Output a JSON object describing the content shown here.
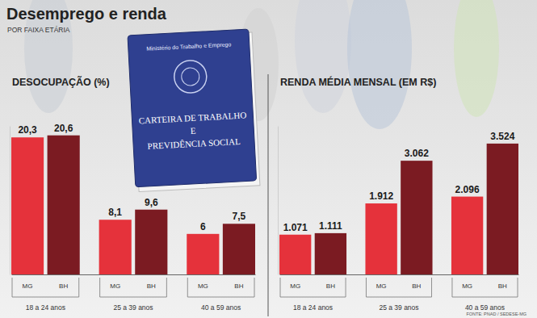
{
  "title": "Desemprego e renda",
  "subtitle": "POR FAIXA ETÁRIA",
  "source": "FONTE: PNAD / SEDESE-MG",
  "illustration": {
    "ministry": "Ministério do Trabalho e Emprego",
    "title_lines": [
      "CARTEIRA DE TRABALHO",
      "E",
      "PREVIDÊNCIA SOCIAL"
    ]
  },
  "chart_data": [
    {
      "type": "bar",
      "title": "DESOCUPAÇÃO (%)",
      "categories": [
        "18 a 24 anos",
        "25 a 39 anos",
        "40 a 59 anos"
      ],
      "series": [
        {
          "name": "MG",
          "color": "#e5323b",
          "values": [
            20.3,
            8.1,
            6
          ],
          "value_labels": [
            "20,3",
            "8,1",
            "6"
          ]
        },
        {
          "name": "BH",
          "color": "#7b1b22",
          "values": [
            20.6,
            9.6,
            7.5
          ],
          "value_labels": [
            "20,6",
            "9,6",
            "7,5"
          ]
        }
      ],
      "ylim": [
        0,
        22
      ],
      "data_labels": true,
      "tick_labels": "x",
      "grid": false
    },
    {
      "type": "bar",
      "title": "RENDA MÉDIA MENSAL (EM R$)",
      "categories": [
        "18 a 24 anos",
        "25 a 39 anos",
        "40 a 59 anos"
      ],
      "series": [
        {
          "name": "MG",
          "color": "#e5323b",
          "values": [
            1071,
            1912,
            2096
          ],
          "value_labels": [
            "1.071",
            "1.912",
            "2.096"
          ]
        },
        {
          "name": "BH",
          "color": "#7b1b22",
          "values": [
            1111,
            3062,
            3524
          ],
          "value_labels": [
            "1.111",
            "3.062",
            "3.524"
          ]
        }
      ],
      "ylim": [
        0,
        4000
      ],
      "data_labels": true,
      "tick_labels": "x",
      "grid": false
    }
  ]
}
